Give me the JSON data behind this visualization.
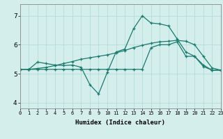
{
  "xlabel": "Humidex (Indice chaleur)",
  "background_color": "#d4eeec",
  "line_color": "#1a7a6e",
  "grid_color": "#b0d8d5",
  "x_min": 0,
  "x_max": 23,
  "y_min": 3.8,
  "y_max": 7.4,
  "yticks": [
    4,
    5,
    6,
    7
  ],
  "xticks": [
    0,
    1,
    2,
    3,
    4,
    5,
    6,
    7,
    8,
    9,
    10,
    11,
    12,
    13,
    14,
    15,
    16,
    17,
    18,
    19,
    20,
    21,
    22,
    23
  ],
  "series1_x": [
    0,
    1,
    2,
    3,
    4,
    5,
    6,
    7,
    8,
    9,
    10,
    11,
    12,
    13,
    14,
    15,
    16,
    17,
    18,
    19,
    20,
    21,
    22,
    23
  ],
  "series1_y": [
    5.15,
    5.15,
    5.4,
    5.35,
    5.3,
    5.28,
    5.3,
    5.22,
    4.62,
    4.3,
    5.05,
    5.75,
    5.85,
    6.55,
    7.0,
    6.75,
    6.72,
    6.65,
    6.2,
    5.75,
    5.6,
    5.3,
    5.12,
    5.12
  ],
  "series2_x": [
    0,
    1,
    2,
    3,
    4,
    5,
    6,
    7,
    8,
    9,
    10,
    11,
    12,
    13,
    14,
    15,
    16,
    17,
    18,
    19,
    20,
    21,
    22,
    23
  ],
  "series2_y": [
    5.15,
    5.15,
    5.18,
    5.22,
    5.28,
    5.35,
    5.42,
    5.5,
    5.55,
    5.6,
    5.65,
    5.72,
    5.8,
    5.9,
    5.98,
    6.05,
    6.1,
    6.12,
    6.15,
    6.12,
    6.0,
    5.6,
    5.2,
    5.12
  ],
  "series3_x": [
    0,
    1,
    2,
    3,
    4,
    5,
    6,
    7,
    8,
    9,
    10,
    11,
    12,
    13,
    14,
    15,
    16,
    17,
    18,
    19,
    20,
    21,
    22,
    23
  ],
  "series3_y": [
    5.15,
    5.15,
    5.15,
    5.15,
    5.15,
    5.15,
    5.15,
    5.15,
    5.15,
    5.15,
    5.15,
    5.15,
    5.15,
    5.15,
    5.15,
    5.9,
    6.0,
    6.0,
    6.1,
    5.6,
    5.6,
    5.25,
    5.12,
    5.12
  ]
}
